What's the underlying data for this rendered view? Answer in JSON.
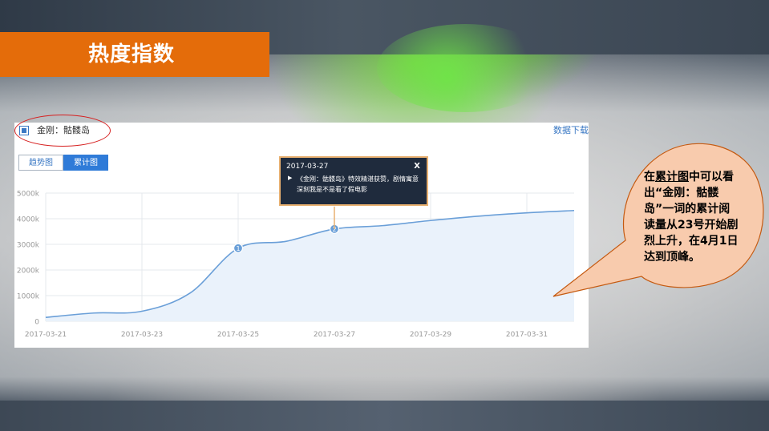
{
  "slide": {
    "title": "热度指数"
  },
  "panel": {
    "legend_label": "金刚：骷髅岛",
    "download_label": "数据下载",
    "tabs": [
      "趋势图",
      "累计图"
    ],
    "active_tab": "累计图"
  },
  "tooltip": {
    "date": "2017-03-27",
    "close": "X",
    "arrow": "▶",
    "text": "《金刚：骷髅岛》特效精湛获赞，剧情寓意深刻我是不是看了假电影"
  },
  "callout": {
    "prefix": "在",
    "link": "累计图",
    "suffix": "中可以看出“金刚：骷髅岛”一词的累计阅读量从23号开始剧烈上升，在4月1日达到顶峰。"
  },
  "colors": {
    "title_bar": "#e46c0a",
    "line": "#6a9fd8",
    "area": "#eaf2fb",
    "marker": "#6a9fd8",
    "callout_fill": "#f8cbad",
    "callout_border": "#c55a11"
  },
  "chart_data": {
    "type": "area",
    "x": [
      "2017-03-21",
      "2017-03-22",
      "2017-03-23",
      "2017-03-24",
      "2017-03-25",
      "2017-03-26",
      "2017-03-27",
      "2017-03-28",
      "2017-03-29",
      "2017-03-30",
      "2017-03-31",
      "2017-04-01"
    ],
    "series": [
      {
        "values": [
          150000,
          320000,
          390000,
          1100000,
          2850000,
          3120000,
          3600000,
          3730000,
          3930000,
          4100000,
          4230000,
          4320000
        ]
      }
    ],
    "x_tick_labels": [
      "2017-03-21",
      "2017-03-23",
      "2017-03-25",
      "2017-03-27",
      "2017-03-29",
      "2017-03-31"
    ],
    "y_tick_labels": [
      "0",
      "1000k",
      "2000k",
      "3000k",
      "4000k",
      "5000k"
    ],
    "ylim": [
      0,
      5000000
    ],
    "grid": true,
    "markers": [
      {
        "label": "1",
        "date": "2017-03-25",
        "value": 2850000
      },
      {
        "label": "2",
        "date": "2017-03-27",
        "value": 3600000
      }
    ]
  }
}
